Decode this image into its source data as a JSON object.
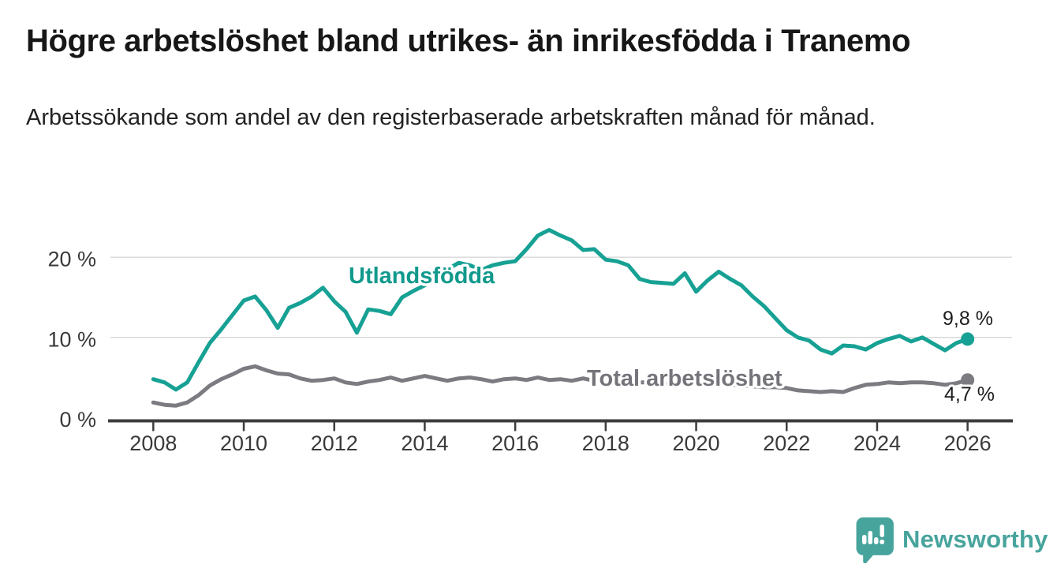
{
  "header": {
    "title": "Högre arbetslöshet bland utrikes- än inrikesfödda i Tranemo",
    "subtitle": "Arbetssökande som andel av den registerbaserade arbetskraften månad för månad."
  },
  "colors": {
    "accent_teal": "#16a194",
    "line_gray": "#7c7b81",
    "axis": "#3c3c3c",
    "gridline": "#d9d9d9",
    "logo_teal": "#47a49d"
  },
  "chart_data": {
    "type": "line",
    "title": "Högre arbetslöshet bland utrikes- än inrikesfödda i Tranemo",
    "subtitle": "Arbetssökande som andel av den registerbaserade arbetskraften månad för månad.",
    "grid": "horizontal",
    "legend_position": "inline-annotations",
    "x_axis": {
      "ticks": [
        2008,
        2010,
        2012,
        2014,
        2016,
        2018,
        2020,
        2022,
        2024,
        2026
      ],
      "range": [
        2007,
        2027
      ]
    },
    "y_axis": {
      "ticks": [
        0,
        10,
        20
      ],
      "tick_labels": [
        "0 %",
        "10 %",
        "20 %"
      ],
      "unit": "%",
      "range": [
        0,
        24
      ]
    },
    "series": [
      {
        "name": "Utlandsfödda",
        "color": "#16a194",
        "label_color": "#11998c",
        "end_label": "9,8 %",
        "end_value": 9.8,
        "points": [
          [
            2008,
            4.8
          ],
          [
            2008.25,
            4.4
          ],
          [
            2008.5,
            3.5
          ],
          [
            2008.75,
            4.4
          ],
          [
            2009,
            6.9
          ],
          [
            2009.25,
            9.3
          ],
          [
            2009.5,
            11.0
          ],
          [
            2009.75,
            12.8
          ],
          [
            2010,
            14.6
          ],
          [
            2010.25,
            15.1
          ],
          [
            2010.5,
            13.4
          ],
          [
            2010.75,
            11.2
          ],
          [
            2011,
            13.7
          ],
          [
            2011.25,
            14.3
          ],
          [
            2011.5,
            15.1
          ],
          [
            2011.75,
            16.2
          ],
          [
            2012,
            14.5
          ],
          [
            2012.25,
            13.2
          ],
          [
            2012.5,
            10.6
          ],
          [
            2012.75,
            13.5
          ],
          [
            2013,
            13.3
          ],
          [
            2013.25,
            12.9
          ],
          [
            2013.5,
            15.0
          ],
          [
            2013.75,
            15.8
          ],
          [
            2014,
            16.5
          ],
          [
            2014.25,
            17.4
          ],
          [
            2014.5,
            18.5
          ],
          [
            2014.75,
            19.3
          ],
          [
            2015,
            19.0
          ],
          [
            2015.25,
            18.4
          ],
          [
            2015.5,
            19.0
          ],
          [
            2015.75,
            19.3
          ],
          [
            2016,
            19.5
          ],
          [
            2016.25,
            21.0
          ],
          [
            2016.5,
            22.7
          ],
          [
            2016.75,
            23.4
          ],
          [
            2017,
            22.7
          ],
          [
            2017.25,
            22.1
          ],
          [
            2017.5,
            20.9
          ],
          [
            2017.75,
            21.0
          ],
          [
            2018,
            19.7
          ],
          [
            2018.25,
            19.5
          ],
          [
            2018.5,
            19.0
          ],
          [
            2018.75,
            17.3
          ],
          [
            2019,
            16.9
          ],
          [
            2019.25,
            16.8
          ],
          [
            2019.5,
            16.7
          ],
          [
            2019.75,
            18.0
          ],
          [
            2020,
            15.7
          ],
          [
            2020.25,
            17.1
          ],
          [
            2020.5,
            18.2
          ],
          [
            2020.75,
            17.3
          ],
          [
            2021,
            16.5
          ],
          [
            2021.25,
            15.1
          ],
          [
            2021.5,
            13.9
          ],
          [
            2021.75,
            12.4
          ],
          [
            2022,
            10.9
          ],
          [
            2022.25,
            10.0
          ],
          [
            2022.5,
            9.6
          ],
          [
            2022.75,
            8.5
          ],
          [
            2023,
            8.0
          ],
          [
            2023.25,
            9.0
          ],
          [
            2023.5,
            8.9
          ],
          [
            2023.75,
            8.5
          ],
          [
            2024,
            9.3
          ],
          [
            2024.25,
            9.8
          ],
          [
            2024.5,
            10.2
          ],
          [
            2024.75,
            9.5
          ],
          [
            2025,
            10.0
          ],
          [
            2025.25,
            9.2
          ],
          [
            2025.5,
            8.4
          ],
          [
            2025.75,
            9.3
          ],
          [
            2026,
            9.8
          ]
        ]
      },
      {
        "name": "Total arbetslöshet",
        "color": "#7c7b81",
        "label_color": "#75747a",
        "end_label": "4,7 %",
        "end_value": 4.7,
        "points": [
          [
            2008,
            1.9
          ],
          [
            2008.25,
            1.6
          ],
          [
            2008.5,
            1.5
          ],
          [
            2008.75,
            1.9
          ],
          [
            2009,
            2.8
          ],
          [
            2009.25,
            4.0
          ],
          [
            2009.5,
            4.8
          ],
          [
            2009.75,
            5.4
          ],
          [
            2010,
            6.1
          ],
          [
            2010.25,
            6.4
          ],
          [
            2010.5,
            5.9
          ],
          [
            2010.75,
            5.5
          ],
          [
            2011,
            5.4
          ],
          [
            2011.25,
            4.9
          ],
          [
            2011.5,
            4.6
          ],
          [
            2011.75,
            4.7
          ],
          [
            2012,
            4.9
          ],
          [
            2012.25,
            4.4
          ],
          [
            2012.5,
            4.2
          ],
          [
            2012.75,
            4.5
          ],
          [
            2013,
            4.7
          ],
          [
            2013.25,
            5.0
          ],
          [
            2013.5,
            4.6
          ],
          [
            2013.75,
            4.9
          ],
          [
            2014,
            5.2
          ],
          [
            2014.25,
            4.9
          ],
          [
            2014.5,
            4.6
          ],
          [
            2014.75,
            4.9
          ],
          [
            2015,
            5.0
          ],
          [
            2015.25,
            4.8
          ],
          [
            2015.5,
            4.5
          ],
          [
            2015.75,
            4.8
          ],
          [
            2016,
            4.9
          ],
          [
            2016.25,
            4.7
          ],
          [
            2016.5,
            5.0
          ],
          [
            2016.75,
            4.7
          ],
          [
            2017,
            4.8
          ],
          [
            2017.25,
            4.6
          ],
          [
            2017.5,
            4.9
          ],
          [
            2017.75,
            4.6
          ],
          [
            2018,
            4.5
          ],
          [
            2018.25,
            4.3
          ],
          [
            2018.5,
            4.5
          ],
          [
            2018.75,
            4.4
          ],
          [
            2019,
            4.4
          ],
          [
            2019.25,
            4.2
          ],
          [
            2019.5,
            4.4
          ],
          [
            2019.75,
            4.3
          ],
          [
            2020,
            4.2
          ],
          [
            2020.25,
            4.4
          ],
          [
            2020.5,
            4.3
          ],
          [
            2020.75,
            4.1
          ],
          [
            2021,
            4.0
          ],
          [
            2021.25,
            3.9
          ],
          [
            2021.5,
            3.8
          ],
          [
            2021.75,
            3.8
          ],
          [
            2022,
            3.7
          ],
          [
            2022.25,
            3.4
          ],
          [
            2022.5,
            3.3
          ],
          [
            2022.75,
            3.2
          ],
          [
            2023,
            3.3
          ],
          [
            2023.25,
            3.2
          ],
          [
            2023.5,
            3.7
          ],
          [
            2023.75,
            4.1
          ],
          [
            2024,
            4.2
          ],
          [
            2024.25,
            4.4
          ],
          [
            2024.5,
            4.3
          ],
          [
            2024.75,
            4.4
          ],
          [
            2025,
            4.4
          ],
          [
            2025.25,
            4.3
          ],
          [
            2025.5,
            4.1
          ],
          [
            2025.75,
            4.3
          ],
          [
            2026,
            4.7
          ]
        ]
      }
    ]
  },
  "footer": {
    "brand": "Newsworthy"
  }
}
